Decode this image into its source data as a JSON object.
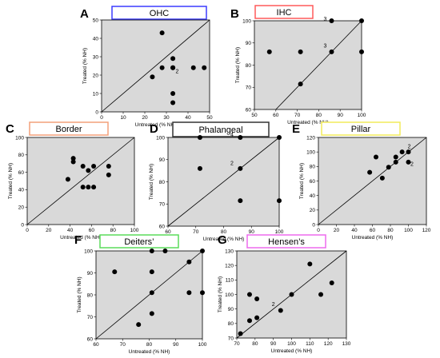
{
  "chart_data": [
    {
      "letter": "A",
      "title": "OHC",
      "title_color": "#3b3bff",
      "type": "scatter",
      "xlabel": "Untreated (% NH)",
      "ylabel": "Treated (% NH)",
      "xlim": [
        0,
        50
      ],
      "ylim": [
        0,
        50
      ],
      "xticks": [
        0,
        10,
        20,
        30,
        40,
        50
      ],
      "yticks": [
        0,
        10,
        20,
        30,
        40,
        50
      ],
      "points": [
        [
          28,
          43
        ],
        [
          28,
          24
        ],
        [
          33,
          24
        ],
        [
          33,
          29
        ],
        [
          33,
          24
        ],
        [
          42.5,
          24
        ],
        [
          47.5,
          24
        ],
        [
          23.5,
          19
        ],
        [
          33,
          10
        ],
        [
          33,
          5
        ]
      ],
      "annotations": [
        {
          "text": "2",
          "x": 35,
          "y": 21
        }
      ]
    },
    {
      "letter": "B",
      "title": "IHC",
      "title_color": "#ff5a5a",
      "type": "scatter",
      "xlabel": "Untreated (% NH)",
      "ylabel": "Treated (% NH)",
      "xlim": [
        50,
        100
      ],
      "ylim": [
        60,
        100
      ],
      "xticks": [
        50,
        60,
        70,
        80,
        90,
        100
      ],
      "yticks": [
        60,
        70,
        80,
        90,
        100
      ],
      "points": [
        [
          57,
          86
        ],
        [
          71.5,
          86
        ],
        [
          86,
          100
        ],
        [
          100,
          100
        ],
        [
          86,
          86
        ],
        [
          100,
          86
        ],
        [
          71.5,
          71.5
        ]
      ],
      "annotations": [
        {
          "text": "3",
          "x": 83,
          "y": 100
        },
        {
          "text": "3",
          "x": 83,
          "y": 88
        }
      ]
    },
    {
      "letter": "C",
      "title": "Border",
      "title_color": "#f4a07a",
      "type": "scatter",
      "xlabel": "Untreated (% NH)",
      "ylabel": "Treated (% NH)",
      "xlim": [
        0,
        100
      ],
      "ylim": [
        0,
        100
      ],
      "xticks": [
        0,
        20,
        40,
        60,
        80,
        100
      ],
      "yticks": [
        0,
        20,
        40,
        60,
        80,
        100
      ],
      "points": [
        [
          43,
          76
        ],
        [
          43,
          72
        ],
        [
          52,
          67
        ],
        [
          57,
          62
        ],
        [
          62,
          67
        ],
        [
          76,
          67
        ],
        [
          76,
          57
        ],
        [
          38,
          52
        ],
        [
          52,
          43
        ],
        [
          57,
          43
        ],
        [
          62,
          43
        ]
      ],
      "annotations": []
    },
    {
      "letter": "D",
      "title": "Phalangeal",
      "title_color": "#333333",
      "type": "scatter",
      "xlabel": "Untreated (% NH)",
      "ylabel": "Treated (% NH)",
      "xlim": [
        60,
        100
      ],
      "ylim": [
        60,
        100
      ],
      "xticks": [
        60,
        70,
        80,
        90,
        100
      ],
      "yticks": [
        60,
        70,
        80,
        90,
        100
      ],
      "points": [
        [
          71.5,
          100
        ],
        [
          86,
          100
        ],
        [
          100,
          100
        ],
        [
          71.5,
          86
        ],
        [
          86,
          86
        ],
        [
          86,
          71.5
        ],
        [
          100,
          71.5
        ]
      ],
      "annotations": [
        {
          "text": "4",
          "x": 83,
          "y": 100.5
        },
        {
          "text": "2",
          "x": 83,
          "y": 87.5
        }
      ]
    },
    {
      "letter": "E",
      "title": "Pillar",
      "title_color": "#f2ec5a",
      "type": "scatter",
      "xlabel": "Untreated (% NH)",
      "ylabel": "Treated (% NH)",
      "xlim": [
        0,
        120
      ],
      "ylim": [
        0,
        120
      ],
      "xticks": [
        0,
        20,
        40,
        60,
        80,
        100,
        120
      ],
      "yticks": [
        0,
        20,
        40,
        60,
        80,
        100,
        120
      ],
      "points": [
        [
          57,
          72
        ],
        [
          64,
          93
        ],
        [
          71,
          64
        ],
        [
          78,
          79
        ],
        [
          86,
          86
        ],
        [
          86,
          93
        ],
        [
          93,
          100
        ],
        [
          100,
          100
        ],
        [
          100,
          86
        ]
      ],
      "annotations": [
        {
          "text": "2",
          "x": 101,
          "y": 105
        },
        {
          "text": "2",
          "x": 104,
          "y": 81
        }
      ]
    },
    {
      "letter": "F",
      "title": "Deiters’",
      "title_color": "#5adc5a",
      "type": "scatter",
      "xlabel": "Untreated (% NH)",
      "ylabel": "Treated (% NH)",
      "xlim": [
        60,
        100
      ],
      "ylim": [
        60,
        100
      ],
      "xticks": [
        60,
        70,
        80,
        90,
        100
      ],
      "yticks": [
        60,
        70,
        80,
        90,
        100
      ],
      "points": [
        [
          81,
          100
        ],
        [
          86,
          100
        ],
        [
          100,
          100
        ],
        [
          67,
          90.5
        ],
        [
          81,
          90.5
        ],
        [
          95,
          95
        ],
        [
          81,
          81
        ],
        [
          95,
          81
        ],
        [
          100,
          81
        ],
        [
          81,
          71.5
        ],
        [
          76,
          66.5
        ]
      ],
      "annotations": []
    },
    {
      "letter": "G",
      "title": "Hensen’s",
      "title_color": "#ee6aee",
      "type": "scatter",
      "xlabel": "Untreated (% NH)",
      "ylabel": "Treated (% NH)",
      "xlim": [
        70,
        130
      ],
      "ylim": [
        70,
        130
      ],
      "xticks": [
        70,
        80,
        90,
        100,
        110,
        120,
        130
      ],
      "yticks": [
        70,
        80,
        90,
        100,
        110,
        120,
        130
      ],
      "points": [
        [
          110,
          121
        ],
        [
          122,
          108
        ],
        [
          116,
          100
        ],
        [
          100,
          100
        ],
        [
          77,
          100
        ],
        [
          81,
          97
        ],
        [
          77,
          82
        ],
        [
          81,
          84
        ],
        [
          94,
          89
        ],
        [
          72,
          73
        ]
      ],
      "annotations": [
        {
          "text": "2",
          "x": 90,
          "y": 92
        }
      ]
    }
  ]
}
